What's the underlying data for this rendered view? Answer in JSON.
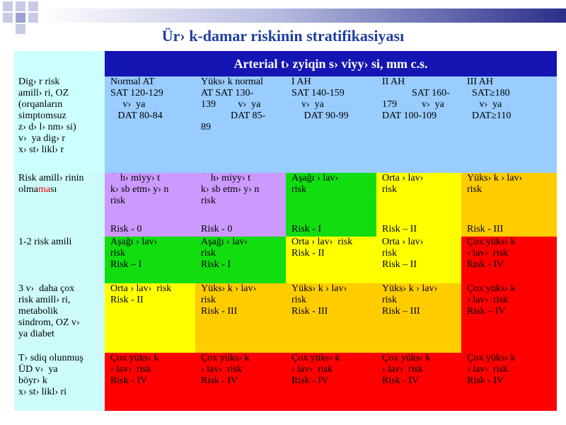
{
  "title": "Ür› k-damar riskinin  stratifikasiyası",
  "table": {
    "header": "Arterial t› zyiqin s› viyy› si, mm c.s.",
    "row_header": [
      "Dig› r risk",
      "amill› ri, OZ",
      "(orqanların",
      "simptomsuz",
      "z› d› l› nm› si)",
      "v›  ya dig› r",
      "x› st› likl› r"
    ],
    "columns": [
      [
        "Normal AT",
        "SAT 120-129",
        "     v›  ya",
        "   DAT 80-84"
      ],
      [
        "Yüks› k normal",
        "AT SAT 130-",
        "139         v›  ya",
        "            DAT 85-",
        "89"
      ],
      [
        "I AH",
        "SAT 140-159",
        "    v›  ya",
        "     DAT 90-99"
      ],
      [
        "II AH",
        "            SAT 160-",
        "179          v›  ya",
        "",
        "DAT 100-109"
      ],
      [
        "III AH",
        "  SAT≥180",
        "     v›  ya",
        "  DAT≥110"
      ]
    ],
    "rows": [
      {
        "label_pre": "Risk amill› rinin",
        "label_line2_pre": "olma",
        "label_line2_hl": "ma",
        "label_line2_post": "sı",
        "cells": [
          {
            "lines": [
              "  ̀  h› miyy› t",
              "k› sb etm› y› n",
              "risk"
            ],
            "risk": "Risk - 0"
          },
          {
            "lines": [
              "  ̀  h› miyy› t",
              "k› sb etm› y› n",
              "risk"
            ],
            "risk": "Risk - 0"
          },
          {
            "lines": [
              "Aşağı › lav›",
              "risk"
            ],
            "risk": "Risk - I"
          },
          {
            "lines": [
              "Orta › lav›",
              "risk"
            ],
            "risk": "Risk – II"
          },
          {
            "lines": [
              "Yüks› k › lav›",
              "risk"
            ],
            "risk": "Risk - III"
          }
        ]
      },
      {
        "label": [
          "1-2 risk amili"
        ],
        "cells": [
          {
            "lines": [
              "Aşağı › lav›",
              "risk",
              "Risk – I"
            ]
          },
          {
            "lines": [
              "Aşağı › lav›",
              "risk",
              "Risk - I"
            ]
          },
          {
            "lines": [
              "Orta › lav›  risk",
              "Risk - II"
            ]
          },
          {
            "lines": [
              "Orta › lav›",
              "risk",
              "Risk – II"
            ]
          },
          {
            "lines": [
              "Çox yüks› k",
              "› lav›  risk",
              "Risk - IV"
            ]
          }
        ]
      },
      {
        "label": [
          "3 v›  daha çox",
          "risk amill› ri,",
          "metabolik",
          "sindrom, OZ v›",
          "ya diabet"
        ],
        "cells": [
          {
            "lines": [
              "Orta › lav›  risk",
              "Risk - II"
            ]
          },
          {
            "lines": [
              "Yüks› k › lav›",
              "risk",
              "Risk - III"
            ]
          },
          {
            "lines": [
              "Yüks› k › lav›",
              "risk",
              "Risk - III"
            ]
          },
          {
            "lines": [
              "Yüks› k › lav›",
              "risk",
              "Risk – III"
            ]
          },
          {
            "lines": [
              "Çox yüks› k",
              "› lav›  risk",
              "Risk – IV"
            ]
          }
        ]
      },
      {
        "label": [
          "T› sdiq olunmuş",
          "ÜD v›  ya",
          "böyr› k",
          "x› st› likl› ri"
        ],
        "cells": [
          {
            "lines": [
              "Çox yüks› k",
              "› lav›  risk",
              "Risk - IV"
            ]
          },
          {
            "lines": [
              "Çox yüks› k",
              "› lav›  risk",
              "Risk - IV"
            ]
          },
          {
            "lines": [
              "Çox yüks› k",
              "› lav›  risk",
              "Risk - IV"
            ]
          },
          {
            "lines": [
              "Çox yüks› k",
              "› lav›  risk",
              "Risk - IV"
            ]
          },
          {
            "lines": [
              "Çox yüks› k",
              "› lav›  risk",
              "Risk - IV"
            ]
          }
        ]
      }
    ]
  },
  "colors": {
    "header": "#1515b3",
    "label": "#ccffff",
    "bp_header": "#99ccff",
    "violet": "#cc99ff",
    "green": "#11dd11",
    "yellow": "#ffff00",
    "orange": "#ffcc00",
    "red": "#ff0000",
    "title": "#1f3fa0"
  }
}
